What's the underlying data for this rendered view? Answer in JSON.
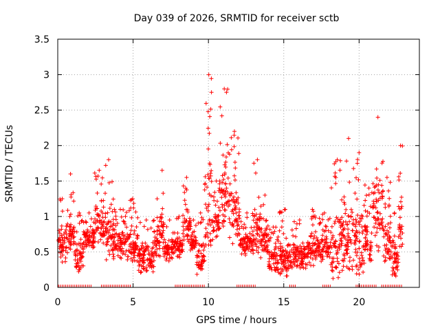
{
  "chart_data": {
    "type": "scatter",
    "title": "Day 039 of 2026, SRMTID for receiver sctb",
    "xlabel": "GPS time / hours",
    "ylabel": "SRMTID / TECUs",
    "xlim": [
      0,
      24
    ],
    "ylim": [
      0,
      3.5
    ],
    "xticks": [
      0,
      5,
      10,
      15,
      20
    ],
    "yticks": [
      0,
      0.5,
      1,
      1.5,
      2,
      2.5,
      3,
      3.5
    ],
    "ytick_labels": [
      "0",
      "0.5",
      "1",
      "1.5",
      "2",
      "2.5",
      "3",
      "3.5"
    ],
    "grid": true,
    "marker": "plus",
    "color": "#ff0000",
    "segments": [
      {
        "t0": 0.05,
        "t1": 0.55,
        "lo": 0.35,
        "hi": 1.25
      },
      {
        "t0": 0.55,
        "t1": 1.15,
        "lo": 0.45,
        "hi": 1.6
      },
      {
        "t0": 1.15,
        "t1": 1.7,
        "lo": 0.2,
        "hi": 1.05
      },
      {
        "t0": 1.7,
        "t1": 2.45,
        "lo": 0.55,
        "hi": 1.05
      },
      {
        "t0": 2.45,
        "t1": 3.05,
        "lo": 0.6,
        "hi": 1.65
      },
      {
        "t0": 3.05,
        "t1": 3.7,
        "lo": 0.35,
        "hi": 1.8
      },
      {
        "t0": 3.7,
        "t1": 4.6,
        "lo": 0.4,
        "hi": 1.1
      },
      {
        "t0": 4.6,
        "t1": 5.35,
        "lo": 0.35,
        "hi": 1.25
      },
      {
        "t0": 5.35,
        "t1": 6.4,
        "lo": 0.2,
        "hi": 0.95
      },
      {
        "t0": 6.4,
        "t1": 6.8,
        "lo": 0.4,
        "hi": 1.25
      },
      {
        "t0": 6.8,
        "t1": 7.05,
        "lo": 0.5,
        "hi": 1.65
      },
      {
        "t0": 7.05,
        "t1": 7.8,
        "lo": 0.35,
        "hi": 0.95
      },
      {
        "t0": 7.8,
        "t1": 8.3,
        "lo": 0.4,
        "hi": 1.0
      },
      {
        "t0": 8.3,
        "t1": 8.8,
        "lo": 0.55,
        "hi": 1.55
      },
      {
        "t0": 8.8,
        "t1": 9.2,
        "lo": 0.5,
        "hi": 0.95
      },
      {
        "t0": 9.2,
        "t1": 9.75,
        "lo": 0.15,
        "hi": 1.05
      },
      {
        "t0": 9.75,
        "t1": 10.3,
        "lo": 0.5,
        "hi": 3.0
      },
      {
        "t0": 10.3,
        "t1": 10.75,
        "lo": 0.7,
        "hi": 1.5
      },
      {
        "t0": 10.75,
        "t1": 11.35,
        "lo": 0.75,
        "hi": 2.8
      },
      {
        "t0": 11.35,
        "t1": 12.1,
        "lo": 0.6,
        "hi": 2.2
      },
      {
        "t0": 12.1,
        "t1": 13.0,
        "lo": 0.45,
        "hi": 1.05
      },
      {
        "t0": 13.0,
        "t1": 13.5,
        "lo": 0.4,
        "hi": 1.8
      },
      {
        "t0": 13.5,
        "t1": 14.0,
        "lo": 0.45,
        "hi": 1.3
      },
      {
        "t0": 14.0,
        "t1": 14.6,
        "lo": 0.2,
        "hi": 0.85
      },
      {
        "t0": 14.6,
        "t1": 15.6,
        "lo": 0.15,
        "hi": 1.1
      },
      {
        "t0": 15.6,
        "t1": 16.5,
        "lo": 0.25,
        "hi": 0.95
      },
      {
        "t0": 16.5,
        "t1": 17.3,
        "lo": 0.3,
        "hi": 1.1
      },
      {
        "t0": 17.3,
        "t1": 18.1,
        "lo": 0.35,
        "hi": 1.05
      },
      {
        "t0": 18.1,
        "t1": 19.0,
        "lo": 0.1,
        "hi": 1.8
      },
      {
        "t0": 19.0,
        "t1": 19.6,
        "lo": 0.2,
        "hi": 2.1
      },
      {
        "t0": 19.6,
        "t1": 20.4,
        "lo": 0.15,
        "hi": 1.9
      },
      {
        "t0": 20.4,
        "t1": 20.9,
        "lo": 0.35,
        "hi": 1.4
      },
      {
        "t0": 20.9,
        "t1": 21.6,
        "lo": 0.5,
        "hi": 2.4
      },
      {
        "t0": 21.6,
        "t1": 22.1,
        "lo": 0.3,
        "hi": 1.55
      },
      {
        "t0": 22.1,
        "t1": 22.6,
        "lo": 0.15,
        "hi": 1.05
      },
      {
        "t0": 22.6,
        "t1": 22.9,
        "lo": 0.5,
        "hi": 2.0
      }
    ],
    "zero_ticks_x_ranges": [
      [
        0.05,
        2.3
      ],
      [
        2.9,
        4.9
      ],
      [
        7.8,
        9.8
      ],
      [
        11.9,
        13.2
      ],
      [
        15.4,
        15.8
      ],
      [
        17.6,
        18.2
      ],
      [
        19.8,
        21.2
      ],
      [
        21.5,
        22.9
      ]
    ]
  }
}
